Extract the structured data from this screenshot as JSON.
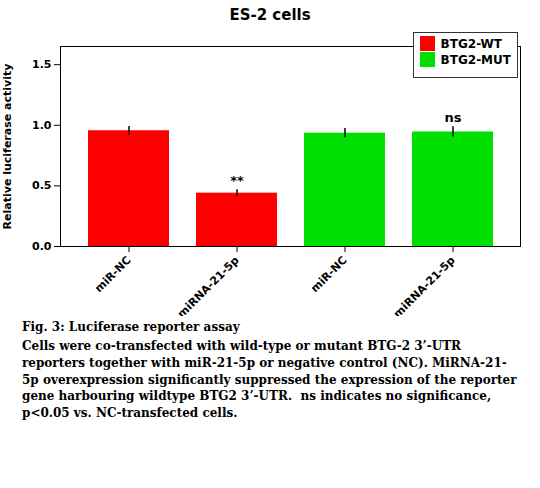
{
  "chart_data": {
    "type": "bar",
    "title": "ES-2 cells",
    "ylabel": "Relative luciferase activity",
    "categories": [
      "miR-NC",
      "miRNA-21-5p",
      "miR-NC",
      "miRNA-21-5p"
    ],
    "series": [
      {
        "name": "BTG2-WT",
        "color": "#ff0000",
        "values": [
          0.955,
          0.44,
          null,
          null
        ],
        "errors": [
          0.035,
          0.028,
          null,
          null
        ]
      },
      {
        "name": "BTG2-MUT",
        "color": "#00e000",
        "values": [
          null,
          null,
          0.935,
          0.945
        ],
        "errors": [
          null,
          null,
          0.038,
          0.042
        ]
      }
    ],
    "annotations": [
      null,
      "**",
      null,
      "ns"
    ],
    "ylim": [
      0.0,
      1.65
    ],
    "yticks": [
      {
        "value": 0.0,
        "label": "0.0"
      },
      {
        "value": 0.5,
        "label": "0.5"
      },
      {
        "value": 1.0,
        "label": "1.0"
      },
      {
        "value": 1.5,
        "label": "1.5"
      }
    ],
    "grid": false,
    "legend": "upper right",
    "caption_title": "Fig. 3: Luciferase reporter assay",
    "caption": "Cells were co-transfected with wild-type or mutant BTG-2 3’-UTR reporters together with miR-21-5p or negative control (NC). MiRNA-21-5p overexpression significantly suppressed the expression of the reporter gene harbouring wildtype BTG2 3’-UTR.  ns indicates no significance, p<0.05 vs. NC-transfected cells."
  }
}
